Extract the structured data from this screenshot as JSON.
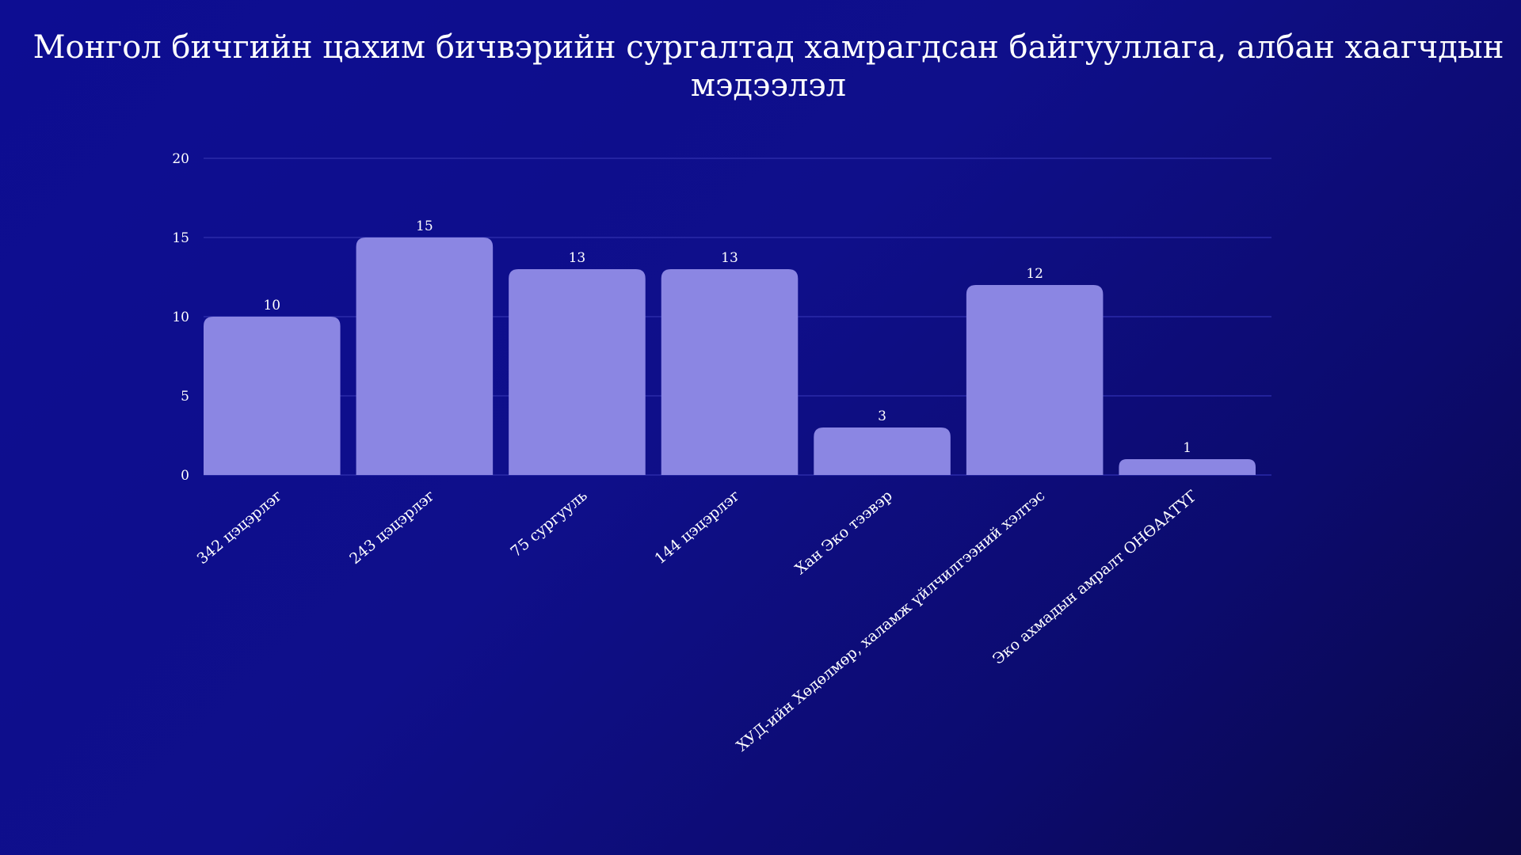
{
  "chart_data": {
    "type": "bar",
    "title": "Монгол бичгийн цахим бичвэрийн  сургалтад хамрагдсан байгууллага, албан хаагчдын мэдээлэл",
    "categories": [
      "342 цэцэрлэг",
      "243 цэцэрлэг",
      "75 сургууль",
      "144 цэцэрлэг",
      "Хан Эко тээвэр",
      "ХУД-ийн Хөдөлмөр, халамж үйлчилгээний хэлтэс",
      "Эко ахмадын амралт ОНӨААТҮГ"
    ],
    "values": [
      10,
      15,
      13,
      13,
      3,
      12,
      1
    ],
    "data_labels": [
      "10",
      "15",
      "13",
      "13",
      "3",
      "12",
      "1"
    ],
    "ylim": [
      0,
      20
    ],
    "yticks": [
      0,
      5,
      10,
      15,
      20
    ],
    "ytick_labels": [
      "0",
      "5",
      "10",
      "15",
      "20"
    ],
    "xlabel": "",
    "ylabel": "",
    "grid": true,
    "legend": "none",
    "colors": {
      "bar": "#8b86e3",
      "gridline": "#2a2aa8",
      "text": "#ffffff"
    }
  }
}
